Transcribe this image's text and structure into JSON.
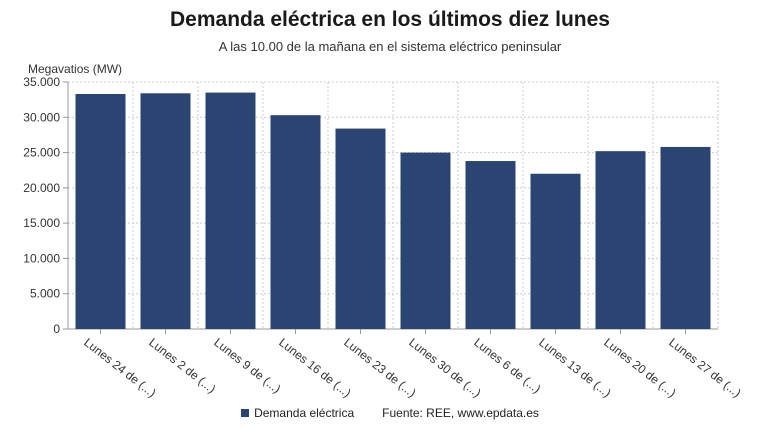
{
  "chart_data": {
    "type": "bar",
    "title": "Demanda eléctrica en los últimos diez lunes",
    "subtitle": "A las 10.00 de la mañana en el sistema eléctrico peninsular",
    "ylabel": "Megavatios (MW)",
    "xlabel": "",
    "categories": [
      "Lunes 24 de (...)",
      "Lunes 2 de (...)",
      "Lunes 9 de (...)",
      "Lunes 16 de (...)",
      "Lunes 23 de (...)",
      "Lunes 30 de (...)",
      "Lunes 6 de (...)",
      "Lunes 13 de (...)",
      "Lunes 20 de (...)",
      "Lunes 27 de (...)"
    ],
    "series": [
      {
        "name": "Demanda eléctrica",
        "values": [
          33300,
          33400,
          33500,
          30300,
          28400,
          25000,
          23800,
          22000,
          25200,
          25800
        ]
      }
    ],
    "ylim": [
      0,
      35000
    ],
    "yticks": [
      "0",
      "5.000",
      "10.000",
      "15.000",
      "20.000",
      "25.000",
      "30.000",
      "35.000"
    ],
    "grid": true,
    "legend_position": "bottom",
    "bar_color": "#2b4573"
  },
  "source": "Fuente: REE, www.epdata.es"
}
